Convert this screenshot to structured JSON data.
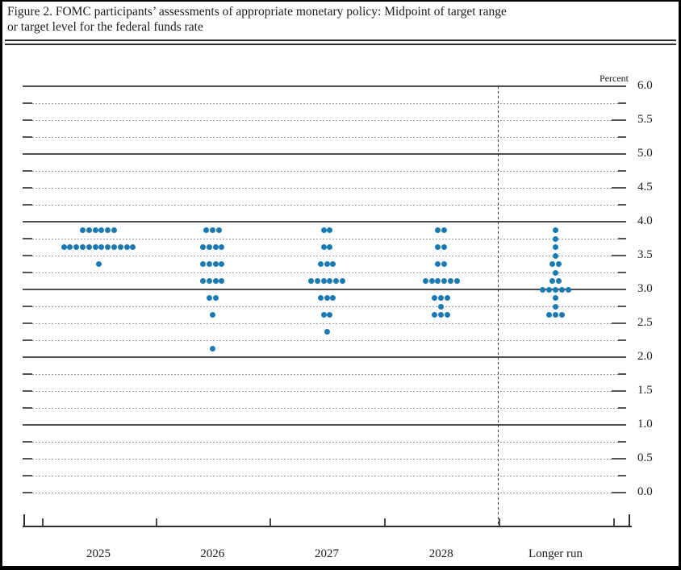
{
  "header": {
    "title_line1": "Figure 2. FOMC participants’ assessments of appropriate monetary policy: Midpoint of target range",
    "title_line2": "or target level for the federal funds rate"
  },
  "chart_data": {
    "type": "scatter",
    "subtype": "fomc-dot-plot",
    "title": "FOMC participants’ assessments of appropriate monetary policy: Midpoint of target range or target level for the federal funds rate",
    "unit_label": "Percent",
    "ylim": [
      0.0,
      6.0
    ],
    "y_label_step": 0.5,
    "y_gridline_step": 0.25,
    "solid_gridlines_at": [
      6.0,
      5.0,
      4.0,
      3.0,
      2.0,
      1.0
    ],
    "y_tick_labels": [
      "6.0",
      "5.5",
      "5.0",
      "4.5",
      "4.0",
      "3.5",
      "3.0",
      "2.5",
      "2.0",
      "1.5",
      "1.0",
      "0.5",
      "0.0"
    ],
    "categories": [
      "2025",
      "2026",
      "2027",
      "2028",
      "Longer run"
    ],
    "participants_per_column": 19,
    "columns": [
      {
        "label": "2025",
        "dots": [
          {
            "rate": 3.875,
            "count": 6
          },
          {
            "rate": 3.625,
            "count": 12
          },
          {
            "rate": 3.375,
            "count": 1
          }
        ]
      },
      {
        "label": "2026",
        "dots": [
          {
            "rate": 3.875,
            "count": 3
          },
          {
            "rate": 3.625,
            "count": 4
          },
          {
            "rate": 3.375,
            "count": 4
          },
          {
            "rate": 3.125,
            "count": 4
          },
          {
            "rate": 2.875,
            "count": 2
          },
          {
            "rate": 2.625,
            "count": 1
          },
          {
            "rate": 2.125,
            "count": 1
          }
        ]
      },
      {
        "label": "2027",
        "dots": [
          {
            "rate": 3.875,
            "count": 2
          },
          {
            "rate": 3.625,
            "count": 2
          },
          {
            "rate": 3.375,
            "count": 3
          },
          {
            "rate": 3.125,
            "count": 6
          },
          {
            "rate": 2.875,
            "count": 3
          },
          {
            "rate": 2.625,
            "count": 2
          },
          {
            "rate": 2.375,
            "count": 1
          }
        ]
      },
      {
        "label": "2028",
        "dots": [
          {
            "rate": 3.875,
            "count": 2
          },
          {
            "rate": 3.625,
            "count": 2
          },
          {
            "rate": 3.375,
            "count": 2
          },
          {
            "rate": 3.125,
            "count": 6
          },
          {
            "rate": 2.875,
            "count": 3
          },
          {
            "rate": 2.75,
            "count": 1
          },
          {
            "rate": 2.625,
            "count": 3
          }
        ]
      },
      {
        "label": "Longer run",
        "dots": [
          {
            "rate": 3.875,
            "count": 1
          },
          {
            "rate": 3.75,
            "count": 1
          },
          {
            "rate": 3.625,
            "count": 1
          },
          {
            "rate": 3.5,
            "count": 1
          },
          {
            "rate": 3.375,
            "count": 2
          },
          {
            "rate": 3.25,
            "count": 1
          },
          {
            "rate": 3.125,
            "count": 2
          },
          {
            "rate": 3.0,
            "count": 5
          },
          {
            "rate": 2.875,
            "count": 1
          },
          {
            "rate": 2.75,
            "count": 1
          },
          {
            "rate": 2.625,
            "count": 3
          }
        ]
      }
    ],
    "legend_position": "none",
    "grid": "on",
    "colors": {
      "dot": "#1a7ab5",
      "solid_gridline": "#4d4d4d",
      "dotted_gridline": "#9a9a9a"
    }
  }
}
